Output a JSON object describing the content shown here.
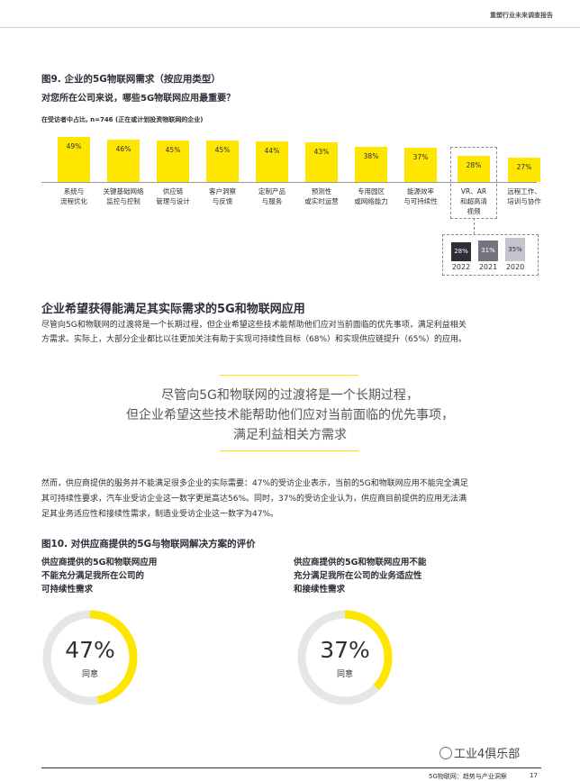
{
  "header": {
    "title": "重塑行业未来调查报告"
  },
  "figure9": {
    "title": "图9. 企业的5G物联网需求（按应用类型）",
    "question": "对您所在公司来说，哪些5G物联网应用最重要？",
    "note": "在受访者中占比, n=746 (正在或计划投资物联网的企业)"
  },
  "chart_data": {
    "type": "bar",
    "categories": [
      "系统与流程优化",
      "关键基础网络监控与控制",
      "供应链管理与设计",
      "客户洞察与反馈",
      "定制产品与服务",
      "预测性或实时运营",
      "专用园区或网络能力",
      "能源效率与可持续性",
      "VR、AR和超高清视频",
      "远程工作、培训与协作"
    ],
    "category_lines": [
      [
        "系统与",
        "流程优化"
      ],
      [
        "关键基础网络",
        "监控与控制"
      ],
      [
        "供应链",
        "管理与设计"
      ],
      [
        "客户洞察",
        "与反馈"
      ],
      [
        "定制产品",
        "与服务"
      ],
      [
        "预测性",
        "或实时运营"
      ],
      [
        "专用园区",
        "或网络能力"
      ],
      [
        "能源效率",
        "与可持续性"
      ],
      [
        "VR、AR",
        "和超高清",
        "视频"
      ],
      [
        "远程工作、",
        "培训与协作"
      ]
    ],
    "values": [
      49,
      46,
      45,
      45,
      44,
      43,
      38,
      37,
      28,
      27
    ],
    "value_labels": [
      "49%",
      "46%",
      "45%",
      "45%",
      "44%",
      "43%",
      "38%",
      "37%",
      "28%",
      "27%"
    ],
    "ylim": [
      0,
      55
    ],
    "highlight_index": 8,
    "year_comparison": {
      "years": [
        "2022",
        "2021",
        "2020"
      ],
      "values": [
        28,
        31,
        35
      ],
      "value_labels": [
        "28%",
        "31%",
        "35%"
      ],
      "colors": [
        "#2e2e38",
        "#747480",
        "#c4c4cd"
      ]
    }
  },
  "section": {
    "title": "企业希望获得能满足其实际需求的5G和物联网应用",
    "para1_line1": "尽管向5G和物联网的过渡将是一个长期过程，但企业希望这些技术能帮助他们应对当前面临的优先事项，满足利益相关",
    "para1_line2": "方需求。实际上，大部分企业都比以往更加关注有助于实现可持续性目标（68%）和实现供应链提升（65%）的应用。",
    "quote_lines": [
      "尽管向5G和物联网的过渡将是一个长期过程，",
      "但企业希望这些技术能帮助他们应对当前面临的优先事项，",
      "满足利益相关方需求"
    ],
    "para2_line1": "然而，供应商提供的服务并不能满足很多企业的实际需要：47%的受访企业表示，当前的5G和物联网应用不能完全满足",
    "para2_line2": "其可持续性要求，汽车业受访企业这一数字更是高达56%。同时，37%的受访企业认为，供应商目前提供的应用无法满",
    "para2_line3": "足其业务适应性和接续性需求，制造业受访企业这一数字为47%。"
  },
  "figure10": {
    "title": "图10. 对供应商提供的5G与物联网解决方案的评价",
    "donuts": [
      {
        "lines": [
          "供应商提供的5G和物联网应用",
          "不能充分满足我所在公司的",
          "可持续性需求"
        ],
        "value": 47,
        "pct_label": "47%",
        "agree_label": "同意"
      },
      {
        "lines": [
          "供应商提供的5G和物联网应用不能",
          "充分满足我所在公司的业务适应性",
          "和接续性需求"
        ],
        "value": 37,
        "pct_label": "37%",
        "agree_label": "同意"
      }
    ]
  },
  "footer": {
    "text": "5G物联网：趋势与产业洞察",
    "page": "17"
  },
  "watermark": {
    "text": "工业4俱乐部"
  },
  "colors": {
    "accent": "#ffe600",
    "dark": "#2e2e38",
    "track": "#e6e6e6"
  }
}
